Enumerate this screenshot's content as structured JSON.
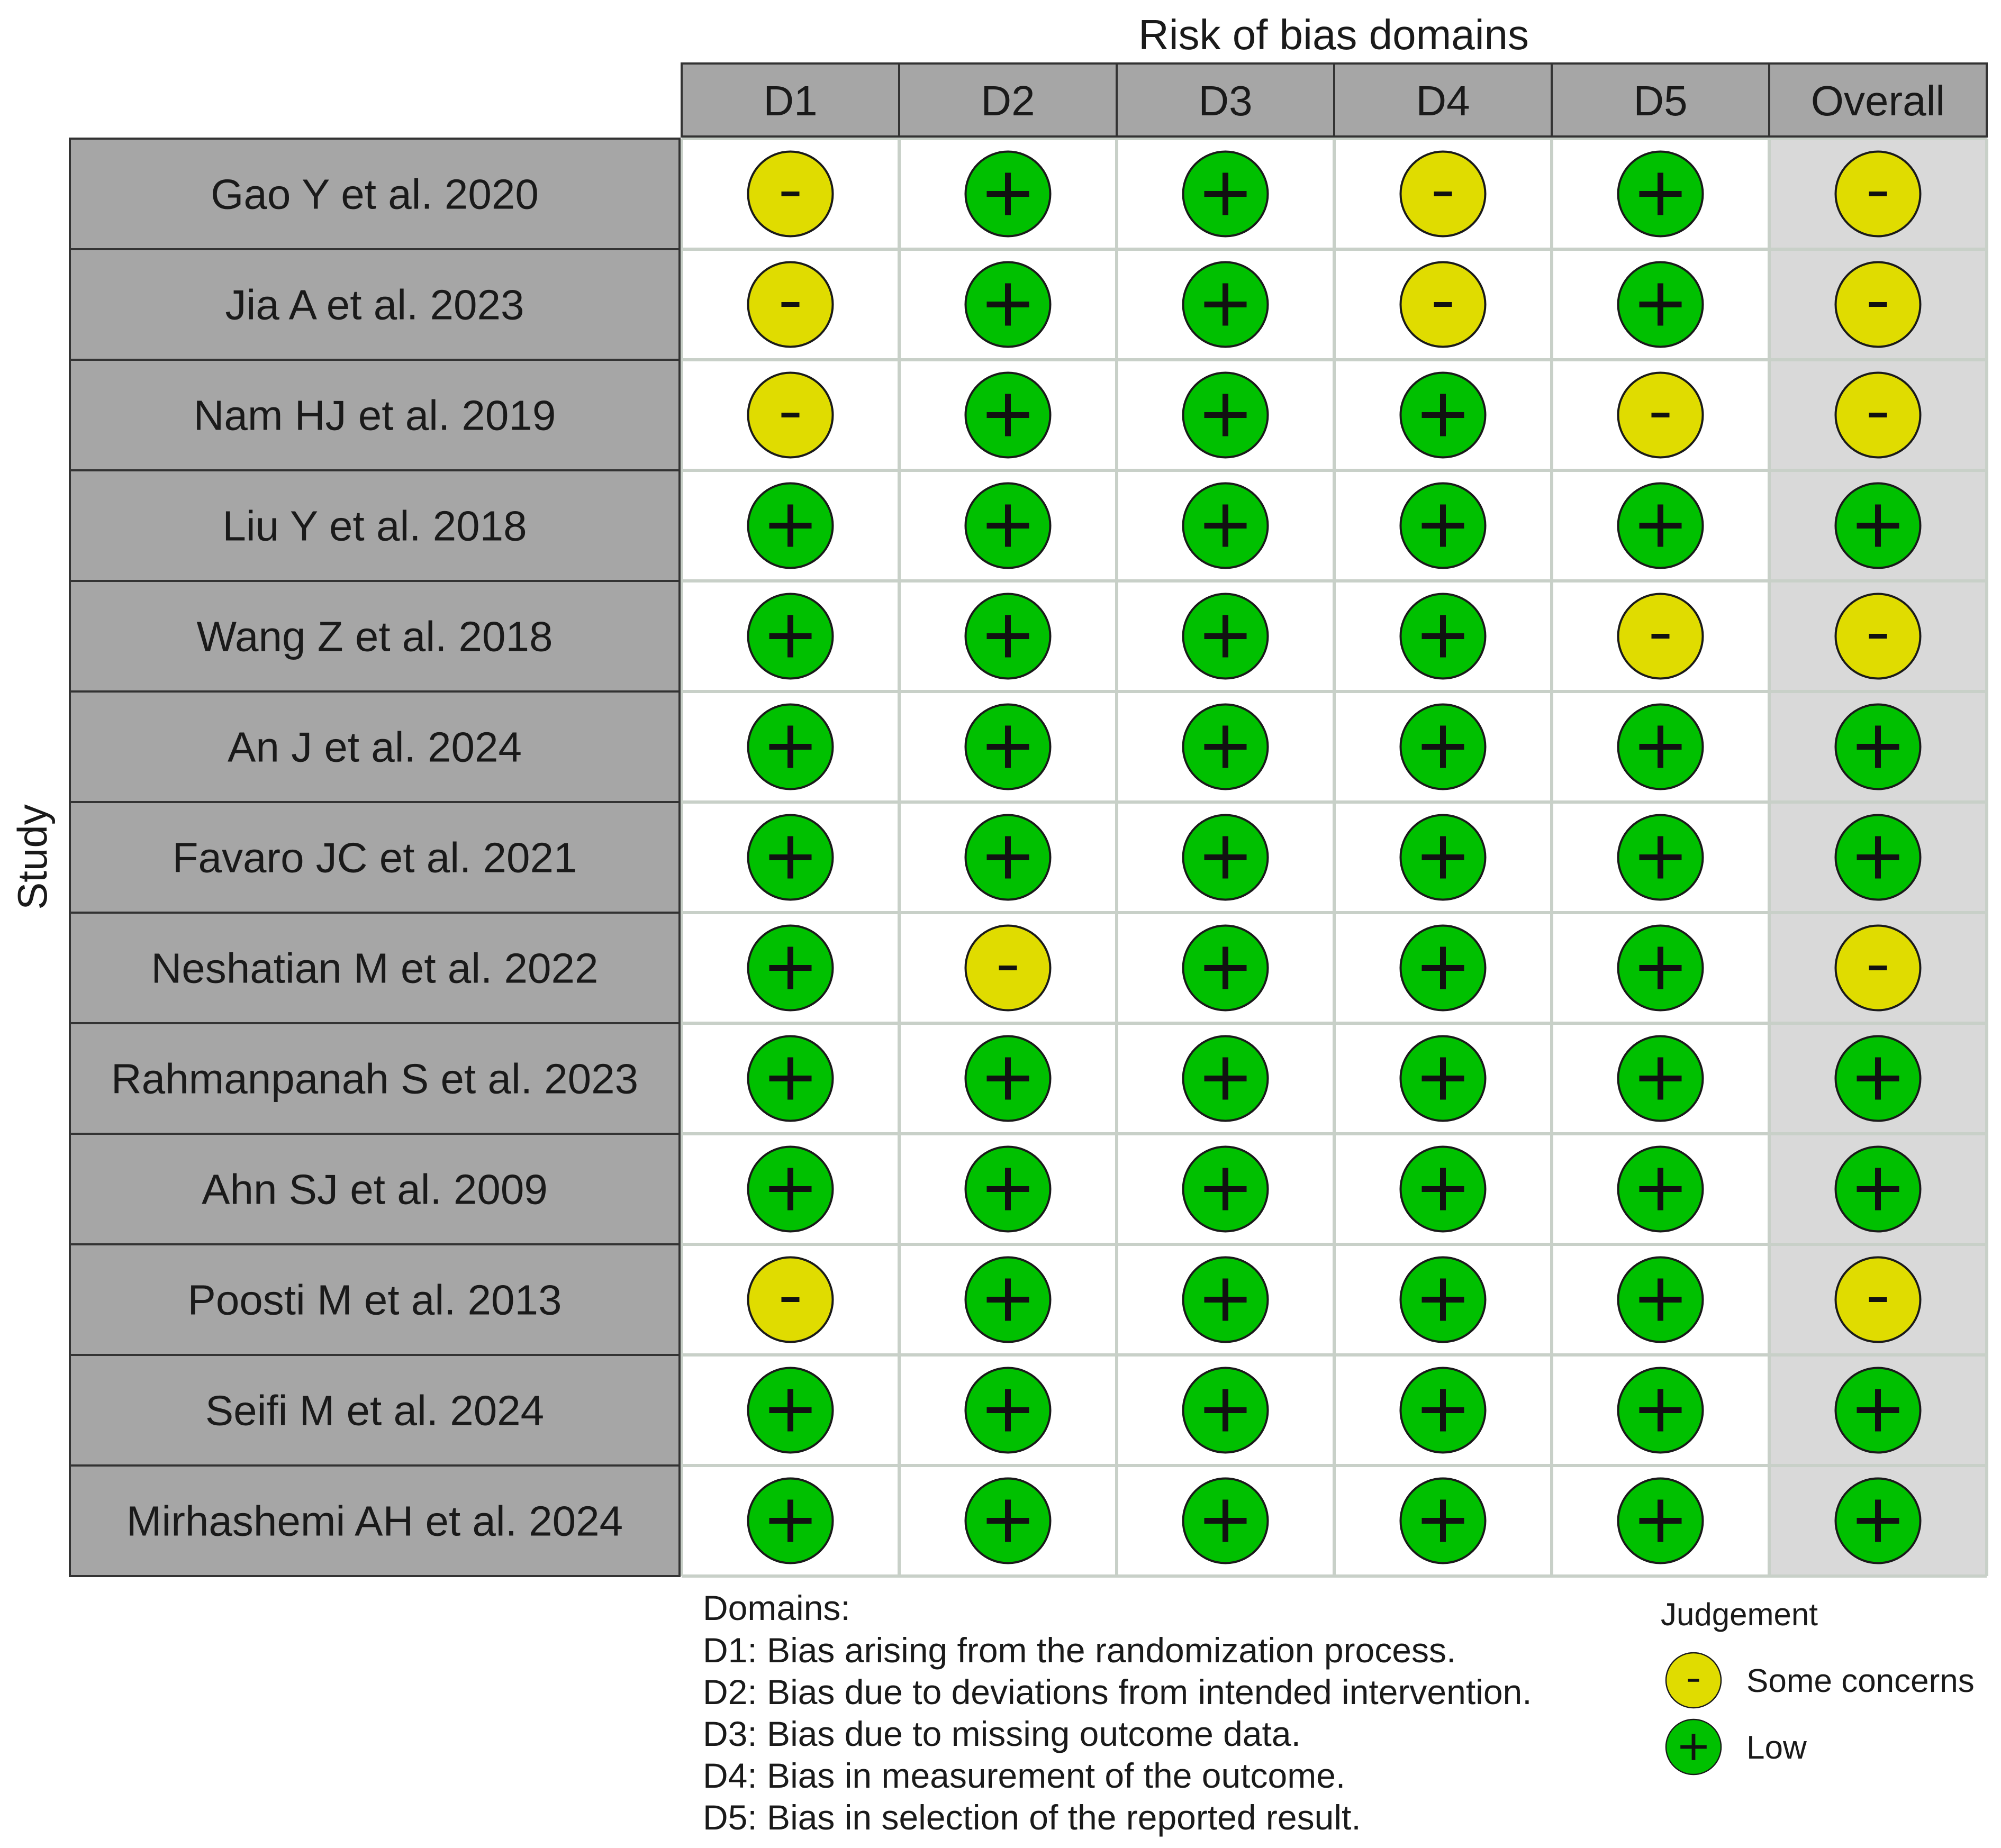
{
  "chart_data": {
    "type": "table",
    "title": "Risk of bias domains",
    "ylabel": "Study",
    "columns": [
      "D1",
      "D2",
      "D3",
      "D4",
      "D5",
      "Overall"
    ],
    "rows": [
      {
        "study": "Gao Y et al. 2020",
        "judgements": [
          "-",
          "+",
          "+",
          "-",
          "+",
          "-"
        ]
      },
      {
        "study": "Jia A et al. 2023",
        "judgements": [
          "-",
          "+",
          "+",
          "-",
          "+",
          "-"
        ]
      },
      {
        "study": "Nam HJ et al. 2019",
        "judgements": [
          "-",
          "+",
          "+",
          "+",
          "-",
          "-"
        ]
      },
      {
        "study": "Liu Y et al. 2018",
        "judgements": [
          "+",
          "+",
          "+",
          "+",
          "+",
          "+"
        ]
      },
      {
        "study": "Wang Z et al. 2018",
        "judgements": [
          "+",
          "+",
          "+",
          "+",
          "-",
          "-"
        ]
      },
      {
        "study": "An J et al. 2024",
        "judgements": [
          "+",
          "+",
          "+",
          "+",
          "+",
          "+"
        ]
      },
      {
        "study": "Favaro JC et al. 2021",
        "judgements": [
          "+",
          "+",
          "+",
          "+",
          "+",
          "+"
        ]
      },
      {
        "study": "Neshatian M et al. 2022",
        "judgements": [
          "+",
          "-",
          "+",
          "+",
          "+",
          "-"
        ]
      },
      {
        "study": "Rahmanpanah S et al. 2023",
        "judgements": [
          "+",
          "+",
          "+",
          "+",
          "+",
          "+"
        ]
      },
      {
        "study": "Ahn SJ et al. 2009",
        "judgements": [
          "+",
          "+",
          "+",
          "+",
          "+",
          "+"
        ]
      },
      {
        "study": "Poosti M et al. 2013",
        "judgements": [
          "-",
          "+",
          "+",
          "+",
          "+",
          "-"
        ]
      },
      {
        "study": "Seifi M et al. 2024",
        "judgements": [
          "+",
          "+",
          "+",
          "+",
          "+",
          "+"
        ]
      },
      {
        "study": "Mirhashemi AH et al. 2024",
        "judgements": [
          "+",
          "+",
          "+",
          "+",
          "+",
          "+"
        ]
      }
    ],
    "domains_title": "Domains:",
    "domains": [
      "D1: Bias arising from the randomization process.",
      "D2: Bias due to deviations from intended intervention.",
      "D3: Bias due to missing outcome data.",
      "D4: Bias in measurement of the outcome.",
      "D5: Bias in selection of the reported result."
    ],
    "legend": {
      "title": "Judgement",
      "placement": "bottom-right",
      "items": [
        {
          "symbol": "-",
          "label": "Some concerns",
          "color": "#e0dc00"
        },
        {
          "symbol": "+",
          "label": "Low",
          "color": "#00c000"
        }
      ]
    },
    "colors": {
      "some_concerns": "#e0dc00",
      "low": "#00c000",
      "header_fill": "#a6a6a6",
      "overall_fill": "#d9d9d9",
      "grid": "#c8d0c8"
    }
  }
}
